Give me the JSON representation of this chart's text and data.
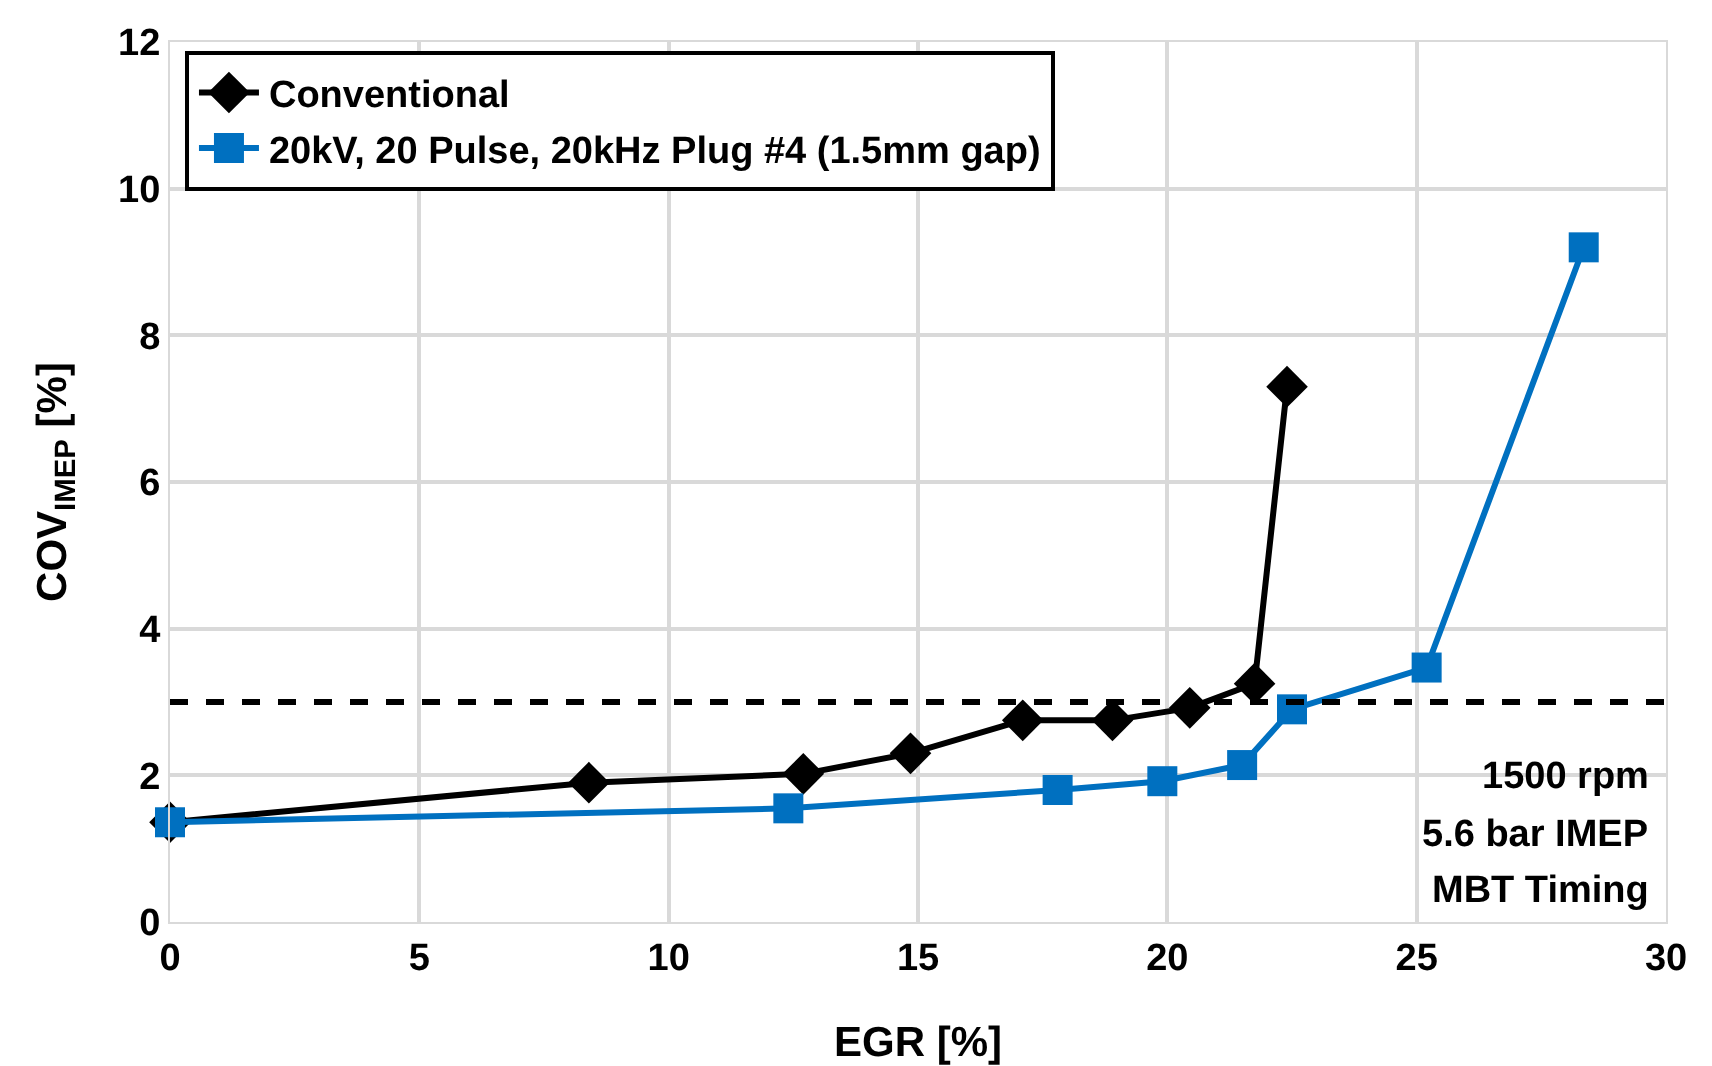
{
  "chart_data": {
    "type": "line",
    "xlabel": "EGR [%]",
    "ylabel": "COV$_{IMEP}$ [%]",
    "xlim": [
      0,
      30
    ],
    "xticks": [
      0,
      5,
      10,
      15,
      20,
      25,
      30
    ],
    "ylim": [
      0,
      12
    ],
    "yticks": [
      0,
      2,
      4,
      6,
      8,
      10,
      12
    ],
    "grid": true,
    "legend": "top left",
    "line_style": "solid",
    "series": [
      {
        "name": "Conventional",
        "color": "#000000",
        "marker": "diamond",
        "x": [
          0,
          8.4,
          12.7,
          14.85,
          17.1,
          18.9,
          20.45,
          21.75,
          22.4
        ],
        "values": [
          1.36,
          1.9,
          2.02,
          2.3,
          2.75,
          2.75,
          2.92,
          3.25,
          7.3
        ]
      },
      {
        "name": "20kV, 20 Pulse, 20kHz Plug #4 (1.5mm gap)",
        "color": "#0070c0",
        "marker": "square",
        "x": [
          0,
          12.4,
          17.8,
          19.9,
          21.5,
          22.5,
          25.2,
          28.35
        ],
        "values": [
          1.36,
          1.55,
          1.8,
          1.92,
          2.14,
          2.9,
          3.47,
          9.2
        ]
      }
    ],
    "ref_lines": [
      {
        "axis": "y",
        "value": 3,
        "color": "#000000",
        "line_style": "dashed"
      }
    ],
    "annotations": [
      "1500 rpm",
      "5.6 bar IMEP",
      "MBT Timing"
    ]
  }
}
